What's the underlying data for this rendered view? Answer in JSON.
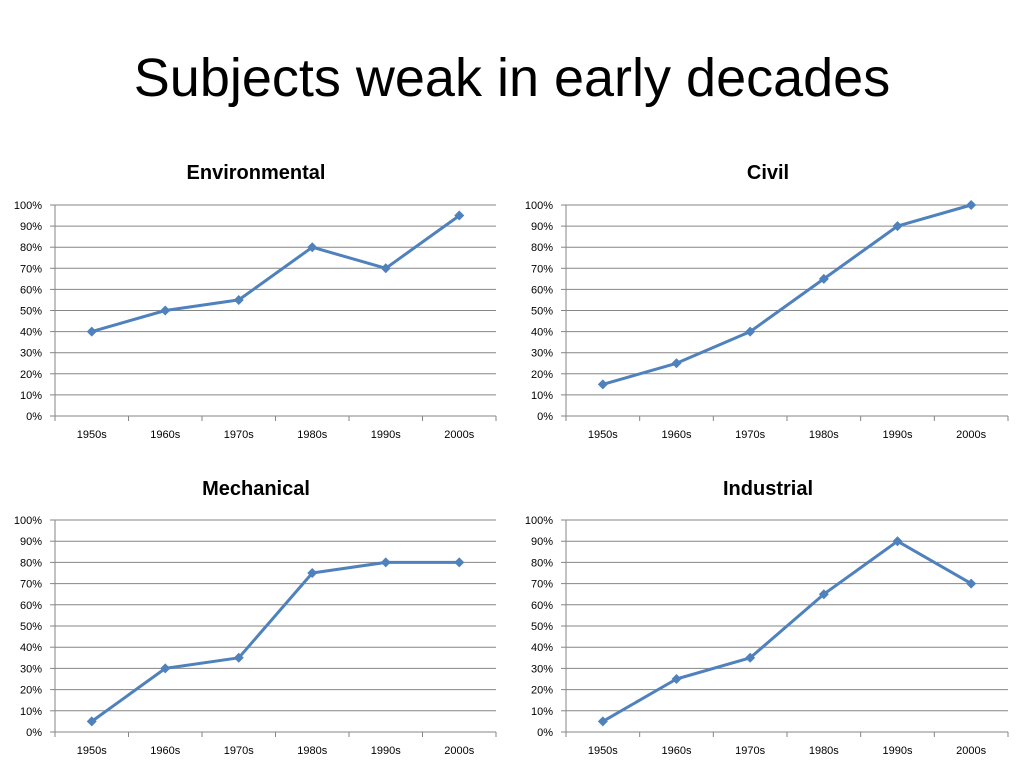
{
  "slide": {
    "title": "Subjects weak in early decades"
  },
  "colors": {
    "series_line": "#4F81BD",
    "gridline": "#868686",
    "text": "#000000",
    "background": "#FFFFFF"
  },
  "chart_data": [
    {
      "type": "line",
      "title": "Environmental",
      "categories": [
        "1950s",
        "1960s",
        "1970s",
        "1980s",
        "1990s",
        "2000s"
      ],
      "series": [
        {
          "values": [
            40,
            50,
            55,
            80,
            70,
            95
          ]
        }
      ],
      "ylim": [
        0,
        100
      ],
      "yticks": [
        "0%",
        "10%",
        "20%",
        "30%",
        "40%",
        "50%",
        "60%",
        "70%",
        "80%",
        "90%",
        "100%"
      ],
      "grid": true,
      "marker": "diamond"
    },
    {
      "type": "line",
      "title": "Civil",
      "categories": [
        "1950s",
        "1960s",
        "1970s",
        "1980s",
        "1990s",
        "2000s"
      ],
      "series": [
        {
          "values": [
            15,
            25,
            40,
            65,
            90,
            100
          ]
        }
      ],
      "ylim": [
        0,
        100
      ],
      "yticks": [
        "0%",
        "10%",
        "20%",
        "30%",
        "40%",
        "50%",
        "60%",
        "70%",
        "80%",
        "90%",
        "100%"
      ],
      "grid": true,
      "marker": "diamond"
    },
    {
      "type": "line",
      "title": "Mechanical",
      "categories": [
        "1950s",
        "1960s",
        "1970s",
        "1980s",
        "1990s",
        "2000s"
      ],
      "series": [
        {
          "values": [
            5,
            30,
            35,
            75,
            80,
            80
          ]
        }
      ],
      "ylim": [
        0,
        100
      ],
      "yticks": [
        "0%",
        "10%",
        "20%",
        "30%",
        "40%",
        "50%",
        "60%",
        "70%",
        "80%",
        "90%",
        "100%"
      ],
      "grid": true,
      "marker": "diamond"
    },
    {
      "type": "line",
      "title": "Industrial",
      "categories": [
        "1950s",
        "1960s",
        "1970s",
        "1980s",
        "1990s",
        "2000s"
      ],
      "series": [
        {
          "values": [
            5,
            25,
            35,
            65,
            90,
            70
          ]
        }
      ],
      "ylim": [
        0,
        100
      ],
      "yticks": [
        "0%",
        "10%",
        "20%",
        "30%",
        "40%",
        "50%",
        "60%",
        "70%",
        "80%",
        "90%",
        "100%"
      ],
      "grid": true,
      "marker": "diamond"
    }
  ]
}
